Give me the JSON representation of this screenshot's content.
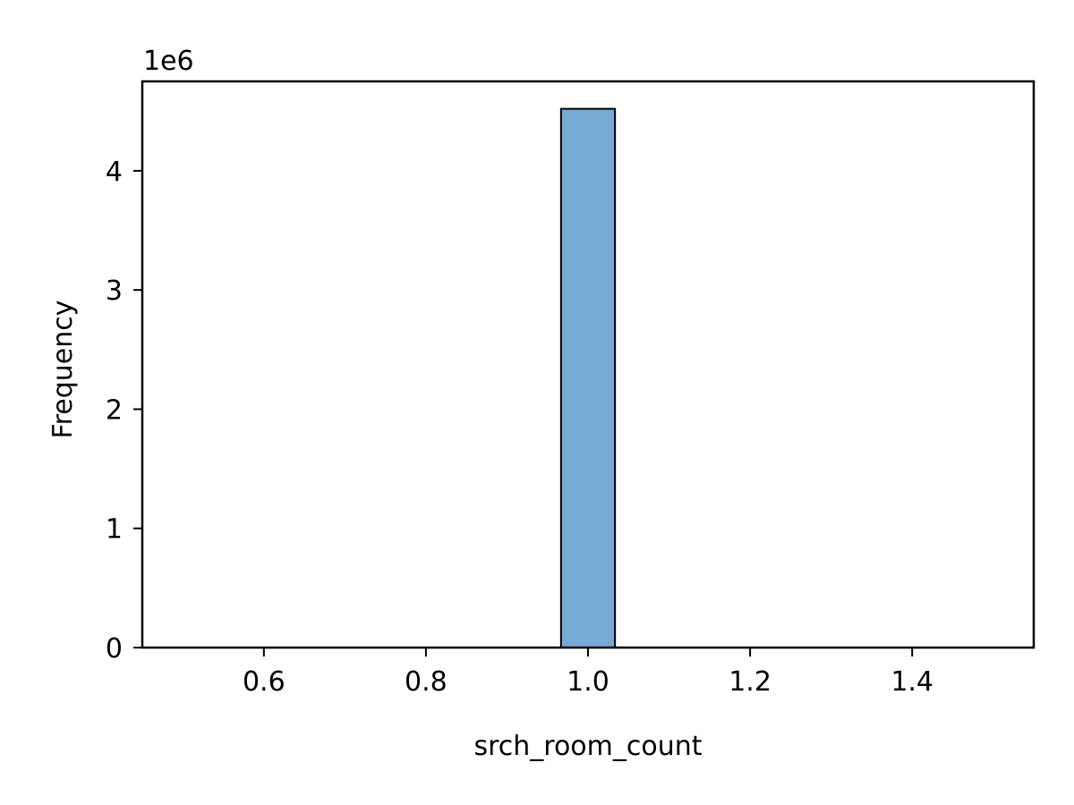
{
  "chart_data": {
    "type": "bar",
    "subtype": "histogram",
    "title": "",
    "xlabel": "srch_room_count",
    "ylabel": "Frequency",
    "y_offset_label": "1e6",
    "xlim": [
      0.45,
      1.55
    ],
    "ylim": [
      0,
      4.75
    ],
    "y_scale_factor": 1000000,
    "x_ticks": [
      {
        "value": 0.6,
        "label": "0.6"
      },
      {
        "value": 0.8,
        "label": "0.8"
      },
      {
        "value": 1.0,
        "label": "1.0"
      },
      {
        "value": 1.2,
        "label": "1.2"
      },
      {
        "value": 1.4,
        "label": "1.4"
      }
    ],
    "y_ticks": [
      {
        "value": 0,
        "label": "0"
      },
      {
        "value": 1,
        "label": "1"
      },
      {
        "value": 2,
        "label": "2"
      },
      {
        "value": 3,
        "label": "3"
      },
      {
        "value": 4,
        "label": "4"
      }
    ],
    "bins": [
      {
        "x_start": 0.9667,
        "x_end": 1.0333,
        "value": 4.52
      }
    ],
    "bar_color": "#76a9d3",
    "edge_color": "#000000",
    "grid": false,
    "legend": "none"
  }
}
